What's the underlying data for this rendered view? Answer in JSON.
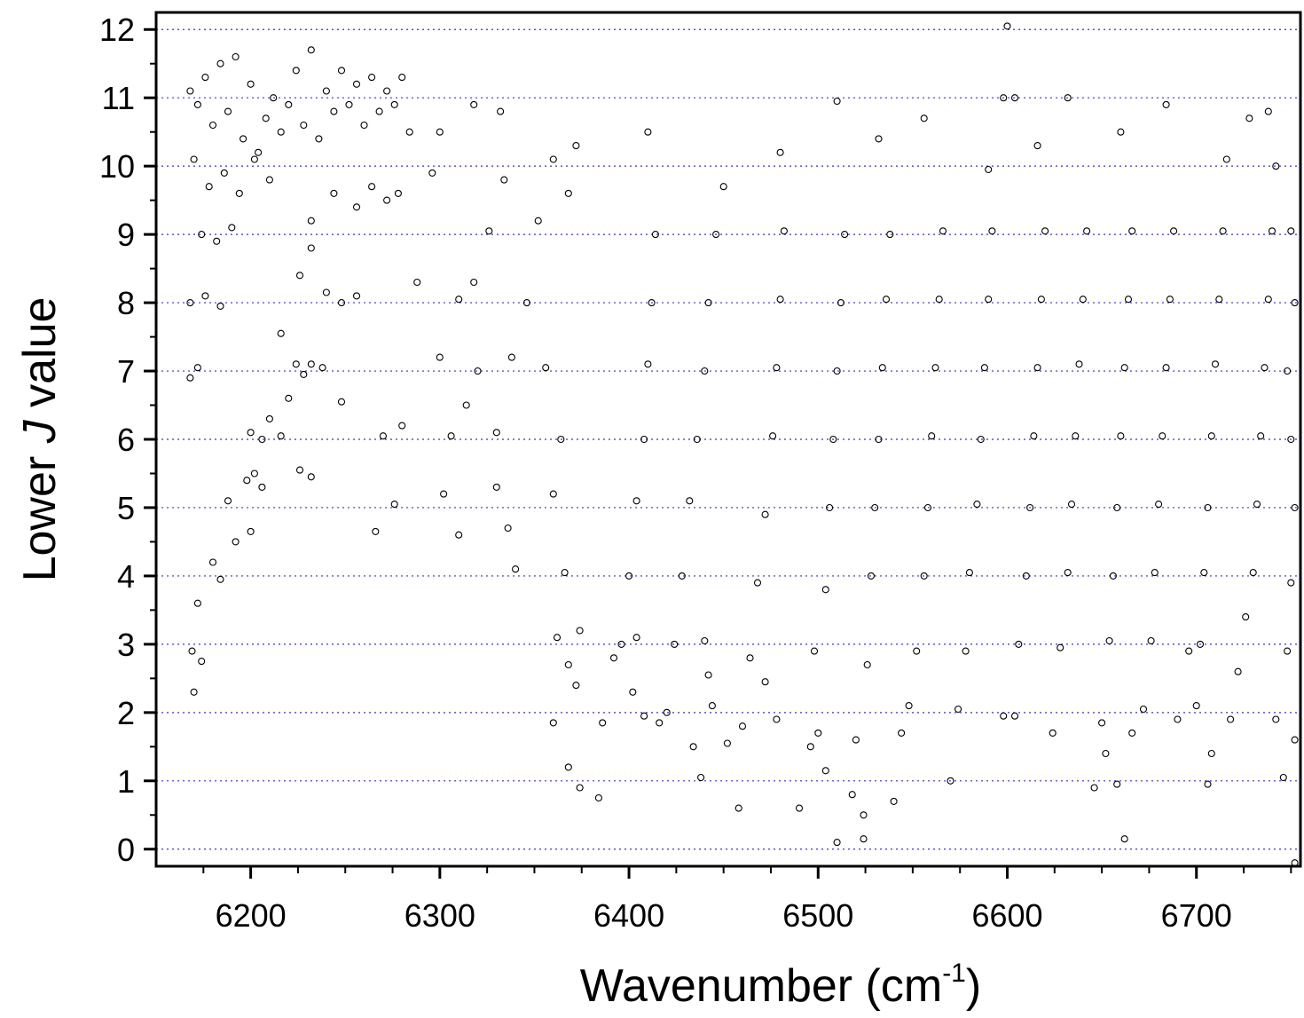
{
  "chart_data": {
    "type": "scatter",
    "title": "",
    "xlabel": "Wavenumber (cm",
    "xlabel_sup": "-1",
    "xlabel_close": ")",
    "ylabel_pre": "Lower ",
    "ylabel_italic": "J",
    "ylabel_post": " value",
    "xlim": [
      6150,
      6755
    ],
    "ylim": [
      -0.25,
      12.25
    ],
    "x_ticks": [
      6200,
      6300,
      6400,
      6500,
      6600,
      6700
    ],
    "y_ticks": [
      0,
      1,
      2,
      3,
      4,
      5,
      6,
      7,
      8,
      9,
      10,
      11,
      12
    ],
    "grid": "horizontal dotted lines at each y tick",
    "marker": "open circle",
    "colors": {
      "marker": "#000000",
      "grid": "#3333cc",
      "axis": "#000000"
    },
    "series": [
      {
        "values_note": "",
        "points": [
          [
            6168,
            11.1
          ],
          [
            6172,
            10.9
          ],
          [
            6176,
            11.3
          ],
          [
            6180,
            10.6
          ],
          [
            6184,
            11.5
          ],
          [
            6188,
            10.8
          ],
          [
            6192,
            11.6
          ],
          [
            6196,
            10.4
          ],
          [
            6200,
            11.2
          ],
          [
            6204,
            10.2
          ],
          [
            6208,
            10.7
          ],
          [
            6212,
            11.0
          ],
          [
            6216,
            10.5
          ],
          [
            6220,
            10.9
          ],
          [
            6224,
            11.4
          ],
          [
            6228,
            10.6
          ],
          [
            6232,
            11.7
          ],
          [
            6236,
            10.4
          ],
          [
            6240,
            11.1
          ],
          [
            6244,
            10.8
          ],
          [
            6248,
            11.4
          ],
          [
            6252,
            10.9
          ],
          [
            6256,
            11.2
          ],
          [
            6260,
            10.6
          ],
          [
            6264,
            11.3
          ],
          [
            6268,
            10.8
          ],
          [
            6272,
            11.1
          ],
          [
            6276,
            10.9
          ],
          [
            6280,
            11.3
          ],
          [
            6284,
            10.5
          ],
          [
            6170,
            10.1
          ],
          [
            6178,
            9.7
          ],
          [
            6186,
            9.9
          ],
          [
            6194,
            9.6
          ],
          [
            6202,
            10.1
          ],
          [
            6210,
            9.8
          ],
          [
            6174,
            9.0
          ],
          [
            6182,
            8.9
          ],
          [
            6190,
            9.1
          ],
          [
            6168,
            8.0
          ],
          [
            6176,
            8.1
          ],
          [
            6184,
            7.95
          ],
          [
            6168,
            6.9
          ],
          [
            6172,
            7.05
          ],
          [
            6172,
            3.6
          ],
          [
            6169,
            2.9
          ],
          [
            6170,
            2.3
          ],
          [
            6174,
            2.75
          ],
          [
            6180,
            4.2
          ],
          [
            6184,
            3.95
          ],
          [
            6188,
            5.1
          ],
          [
            6192,
            4.5
          ],
          [
            6198,
            5.4
          ],
          [
            6202,
            5.5
          ],
          [
            6206,
            5.3
          ],
          [
            6200,
            4.65
          ],
          [
            6200,
            6.1
          ],
          [
            6206,
            6.0
          ],
          [
            6210,
            6.3
          ],
          [
            6216,
            6.05
          ],
          [
            6220,
            6.6
          ],
          [
            6216,
            7.55
          ],
          [
            6224,
            7.1
          ],
          [
            6228,
            6.95
          ],
          [
            6232,
            7.1
          ],
          [
            6238,
            7.05
          ],
          [
            6226,
            8.4
          ],
          [
            6232,
            8.8
          ],
          [
            6240,
            8.15
          ],
          [
            6248,
            8.0
          ],
          [
            6256,
            8.1
          ],
          [
            6232,
            9.2
          ],
          [
            6244,
            9.6
          ],
          [
            6256,
            9.4
          ],
          [
            6264,
            9.7
          ],
          [
            6272,
            9.5
          ],
          [
            6278,
            9.6
          ],
          [
            6232,
            5.45
          ],
          [
            6226,
            5.55
          ],
          [
            6248,
            6.55
          ],
          [
            6266,
            4.65
          ],
          [
            6270,
            6.05
          ],
          [
            6276,
            5.05
          ],
          [
            6280,
            6.2
          ],
          [
            6288,
            8.3
          ],
          [
            6296,
            9.9
          ],
          [
            6300,
            10.5
          ],
          [
            6318,
            10.9
          ],
          [
            6332,
            10.8
          ],
          [
            6302,
            5.2
          ],
          [
            6310,
            4.6
          ],
          [
            6306,
            6.05
          ],
          [
            6300,
            7.2
          ],
          [
            6314,
            6.5
          ],
          [
            6320,
            7.0
          ],
          [
            6310,
            8.05
          ],
          [
            6318,
            8.3
          ],
          [
            6326,
            9.05
          ],
          [
            6334,
            9.8
          ],
          [
            6330,
            5.3
          ],
          [
            6336,
            4.7
          ],
          [
            6340,
            4.1
          ],
          [
            6330,
            6.1
          ],
          [
            6338,
            7.2
          ],
          [
            6346,
            8.0
          ],
          [
            6352,
            9.2
          ],
          [
            6360,
            10.1
          ],
          [
            6368,
            9.6
          ],
          [
            6372,
            10.3
          ],
          [
            6356,
            7.05
          ],
          [
            6364,
            6.0
          ],
          [
            6360,
            5.2
          ],
          [
            6366,
            4.05
          ],
          [
            6362,
            3.1
          ],
          [
            6368,
            2.7
          ],
          [
            6372,
            2.4
          ],
          [
            6374,
            3.2
          ],
          [
            6360,
            1.85
          ],
          [
            6368,
            1.2
          ],
          [
            6374,
            0.9
          ],
          [
            6384,
            0.75
          ],
          [
            6386,
            1.85
          ],
          [
            6392,
            2.8
          ],
          [
            6396,
            3.0
          ],
          [
            6400,
            4.0
          ],
          [
            6404,
            5.1
          ],
          [
            6408,
            6.0
          ],
          [
            6410,
            7.1
          ],
          [
            6412,
            8.0
          ],
          [
            6414,
            9.0
          ],
          [
            6410,
            10.5
          ],
          [
            6404,
            3.1
          ],
          [
            6402,
            2.3
          ],
          [
            6408,
            1.95
          ],
          [
            6416,
            1.85
          ],
          [
            6420,
            2.0
          ],
          [
            6424,
            3.0
          ],
          [
            6428,
            4.0
          ],
          [
            6432,
            5.1
          ],
          [
            6436,
            6.0
          ],
          [
            6440,
            7.0
          ],
          [
            6442,
            8.0
          ],
          [
            6446,
            9.0
          ],
          [
            6450,
            9.7
          ],
          [
            6440,
            3.05
          ],
          [
            6442,
            2.55
          ],
          [
            6444,
            2.1
          ],
          [
            6438,
            1.05
          ],
          [
            6434,
            1.5
          ],
          [
            6452,
            1.55
          ],
          [
            6458,
            0.6
          ],
          [
            6460,
            1.8
          ],
          [
            6464,
            2.8
          ],
          [
            6468,
            3.9
          ],
          [
            6472,
            4.9
          ],
          [
            6476,
            6.05
          ],
          [
            6478,
            7.05
          ],
          [
            6480,
            8.05
          ],
          [
            6482,
            9.05
          ],
          [
            6480,
            10.2
          ],
          [
            6472,
            2.45
          ],
          [
            6478,
            1.9
          ],
          [
            6490,
            0.6
          ],
          [
            6496,
            1.5
          ],
          [
            6500,
            1.7
          ],
          [
            6498,
            2.9
          ],
          [
            6504,
            3.8
          ],
          [
            6506,
            5.0
          ],
          [
            6508,
            6.0
          ],
          [
            6510,
            7.0
          ],
          [
            6512,
            8.0
          ],
          [
            6514,
            9.0
          ],
          [
            6510,
            10.95
          ],
          [
            6504,
            1.15
          ],
          [
            6510,
            0.1
          ],
          [
            6518,
            0.8
          ],
          [
            6524,
            0.5
          ],
          [
            6524,
            0.15
          ],
          [
            6520,
            1.6
          ],
          [
            6526,
            2.7
          ],
          [
            6528,
            4.0
          ],
          [
            6530,
            5.0
          ],
          [
            6532,
            6.0
          ],
          [
            6534,
            7.05
          ],
          [
            6536,
            8.05
          ],
          [
            6538,
            9.0
          ],
          [
            6532,
            10.4
          ],
          [
            6540,
            0.7
          ],
          [
            6544,
            1.7
          ],
          [
            6548,
            2.1
          ],
          [
            6552,
            2.9
          ],
          [
            6556,
            4.0
          ],
          [
            6558,
            5.0
          ],
          [
            6560,
            6.05
          ],
          [
            6562,
            7.05
          ],
          [
            6564,
            8.05
          ],
          [
            6566,
            9.05
          ],
          [
            6556,
            10.7
          ],
          [
            6570,
            1.0
          ],
          [
            6574,
            2.05
          ],
          [
            6578,
            2.9
          ],
          [
            6580,
            4.05
          ],
          [
            6584,
            5.05
          ],
          [
            6586,
            6.0
          ],
          [
            6588,
            7.05
          ],
          [
            6590,
            8.05
          ],
          [
            6592,
            9.05
          ],
          [
            6590,
            9.95
          ],
          [
            6600,
            12.05
          ],
          [
            6598,
            11.0
          ],
          [
            6604,
            11.0
          ],
          [
            6598,
            1.95
          ],
          [
            6604,
            1.95
          ],
          [
            6606,
            3.0
          ],
          [
            6610,
            4.0
          ],
          [
            6612,
            5.0
          ],
          [
            6614,
            6.05
          ],
          [
            6616,
            7.05
          ],
          [
            6618,
            8.05
          ],
          [
            6620,
            9.05
          ],
          [
            6616,
            10.3
          ],
          [
            6624,
            1.7
          ],
          [
            6628,
            2.95
          ],
          [
            6632,
            4.05
          ],
          [
            6634,
            5.05
          ],
          [
            6636,
            6.05
          ],
          [
            6638,
            7.1
          ],
          [
            6640,
            8.05
          ],
          [
            6642,
            9.05
          ],
          [
            6632,
            11.0
          ],
          [
            6646,
            0.9
          ],
          [
            6650,
            1.85
          ],
          [
            6652,
            1.4
          ],
          [
            6654,
            3.05
          ],
          [
            6656,
            4.0
          ],
          [
            6658,
            5.0
          ],
          [
            6660,
            6.05
          ],
          [
            6662,
            7.05
          ],
          [
            6664,
            8.05
          ],
          [
            6666,
            9.05
          ],
          [
            6660,
            10.5
          ],
          [
            6662,
            0.15
          ],
          [
            6658,
            0.95
          ],
          [
            6666,
            1.7
          ],
          [
            6672,
            2.05
          ],
          [
            6676,
            3.05
          ],
          [
            6678,
            4.05
          ],
          [
            6680,
            5.05
          ],
          [
            6682,
            6.05
          ],
          [
            6684,
            7.05
          ],
          [
            6686,
            8.05
          ],
          [
            6688,
            9.05
          ],
          [
            6684,
            10.9
          ],
          [
            6690,
            1.9
          ],
          [
            6696,
            2.9
          ],
          [
            6700,
            2.1
          ],
          [
            6702,
            3.0
          ],
          [
            6704,
            4.05
          ],
          [
            6706,
            5.0
          ],
          [
            6708,
            6.05
          ],
          [
            6710,
            7.1
          ],
          [
            6712,
            8.05
          ],
          [
            6714,
            9.05
          ],
          [
            6716,
            10.1
          ],
          [
            6706,
            0.95
          ],
          [
            6708,
            1.4
          ],
          [
            6718,
            1.9
          ],
          [
            6722,
            2.6
          ],
          [
            6726,
            3.4
          ],
          [
            6730,
            4.05
          ],
          [
            6732,
            5.05
          ],
          [
            6734,
            6.05
          ],
          [
            6736,
            7.05
          ],
          [
            6738,
            8.05
          ],
          [
            6740,
            9.05
          ],
          [
            6742,
            10.0
          ],
          [
            6728,
            10.7
          ],
          [
            6738,
            10.8
          ],
          [
            6742,
            1.9
          ],
          [
            6746,
            1.05
          ],
          [
            6748,
            2.9
          ],
          [
            6750,
            3.9
          ],
          [
            6752,
            5.0
          ],
          [
            6750,
            6.0
          ],
          [
            6748,
            7.0
          ],
          [
            6752,
            8.0
          ],
          [
            6750,
            9.05
          ],
          [
            6752,
            1.6
          ],
          [
            6752,
            -0.2
          ]
        ]
      }
    ]
  }
}
